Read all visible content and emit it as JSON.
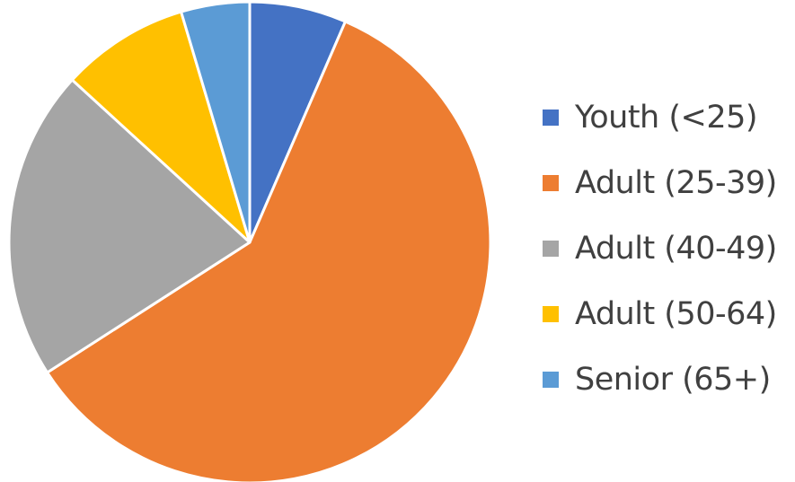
{
  "chart_data": {
    "type": "pie",
    "title": "",
    "categories": [
      "Youth (<25)",
      "Adult (25-39)",
      "Adult (40-49)",
      "Adult (50-64)",
      "Senior (65+)"
    ],
    "values": [
      6.5,
      59.4,
      20.9,
      8.6,
      4.6
    ],
    "unit": "percent of total (estimated)",
    "colors": [
      "#4472C4",
      "#ED7D31",
      "#A5A5A5",
      "#FFC000",
      "#5B9BD5"
    ],
    "start_angle_deg": 0,
    "direction": "clockwise",
    "slice_border_color": "#ffffff",
    "legend_position": "right"
  }
}
